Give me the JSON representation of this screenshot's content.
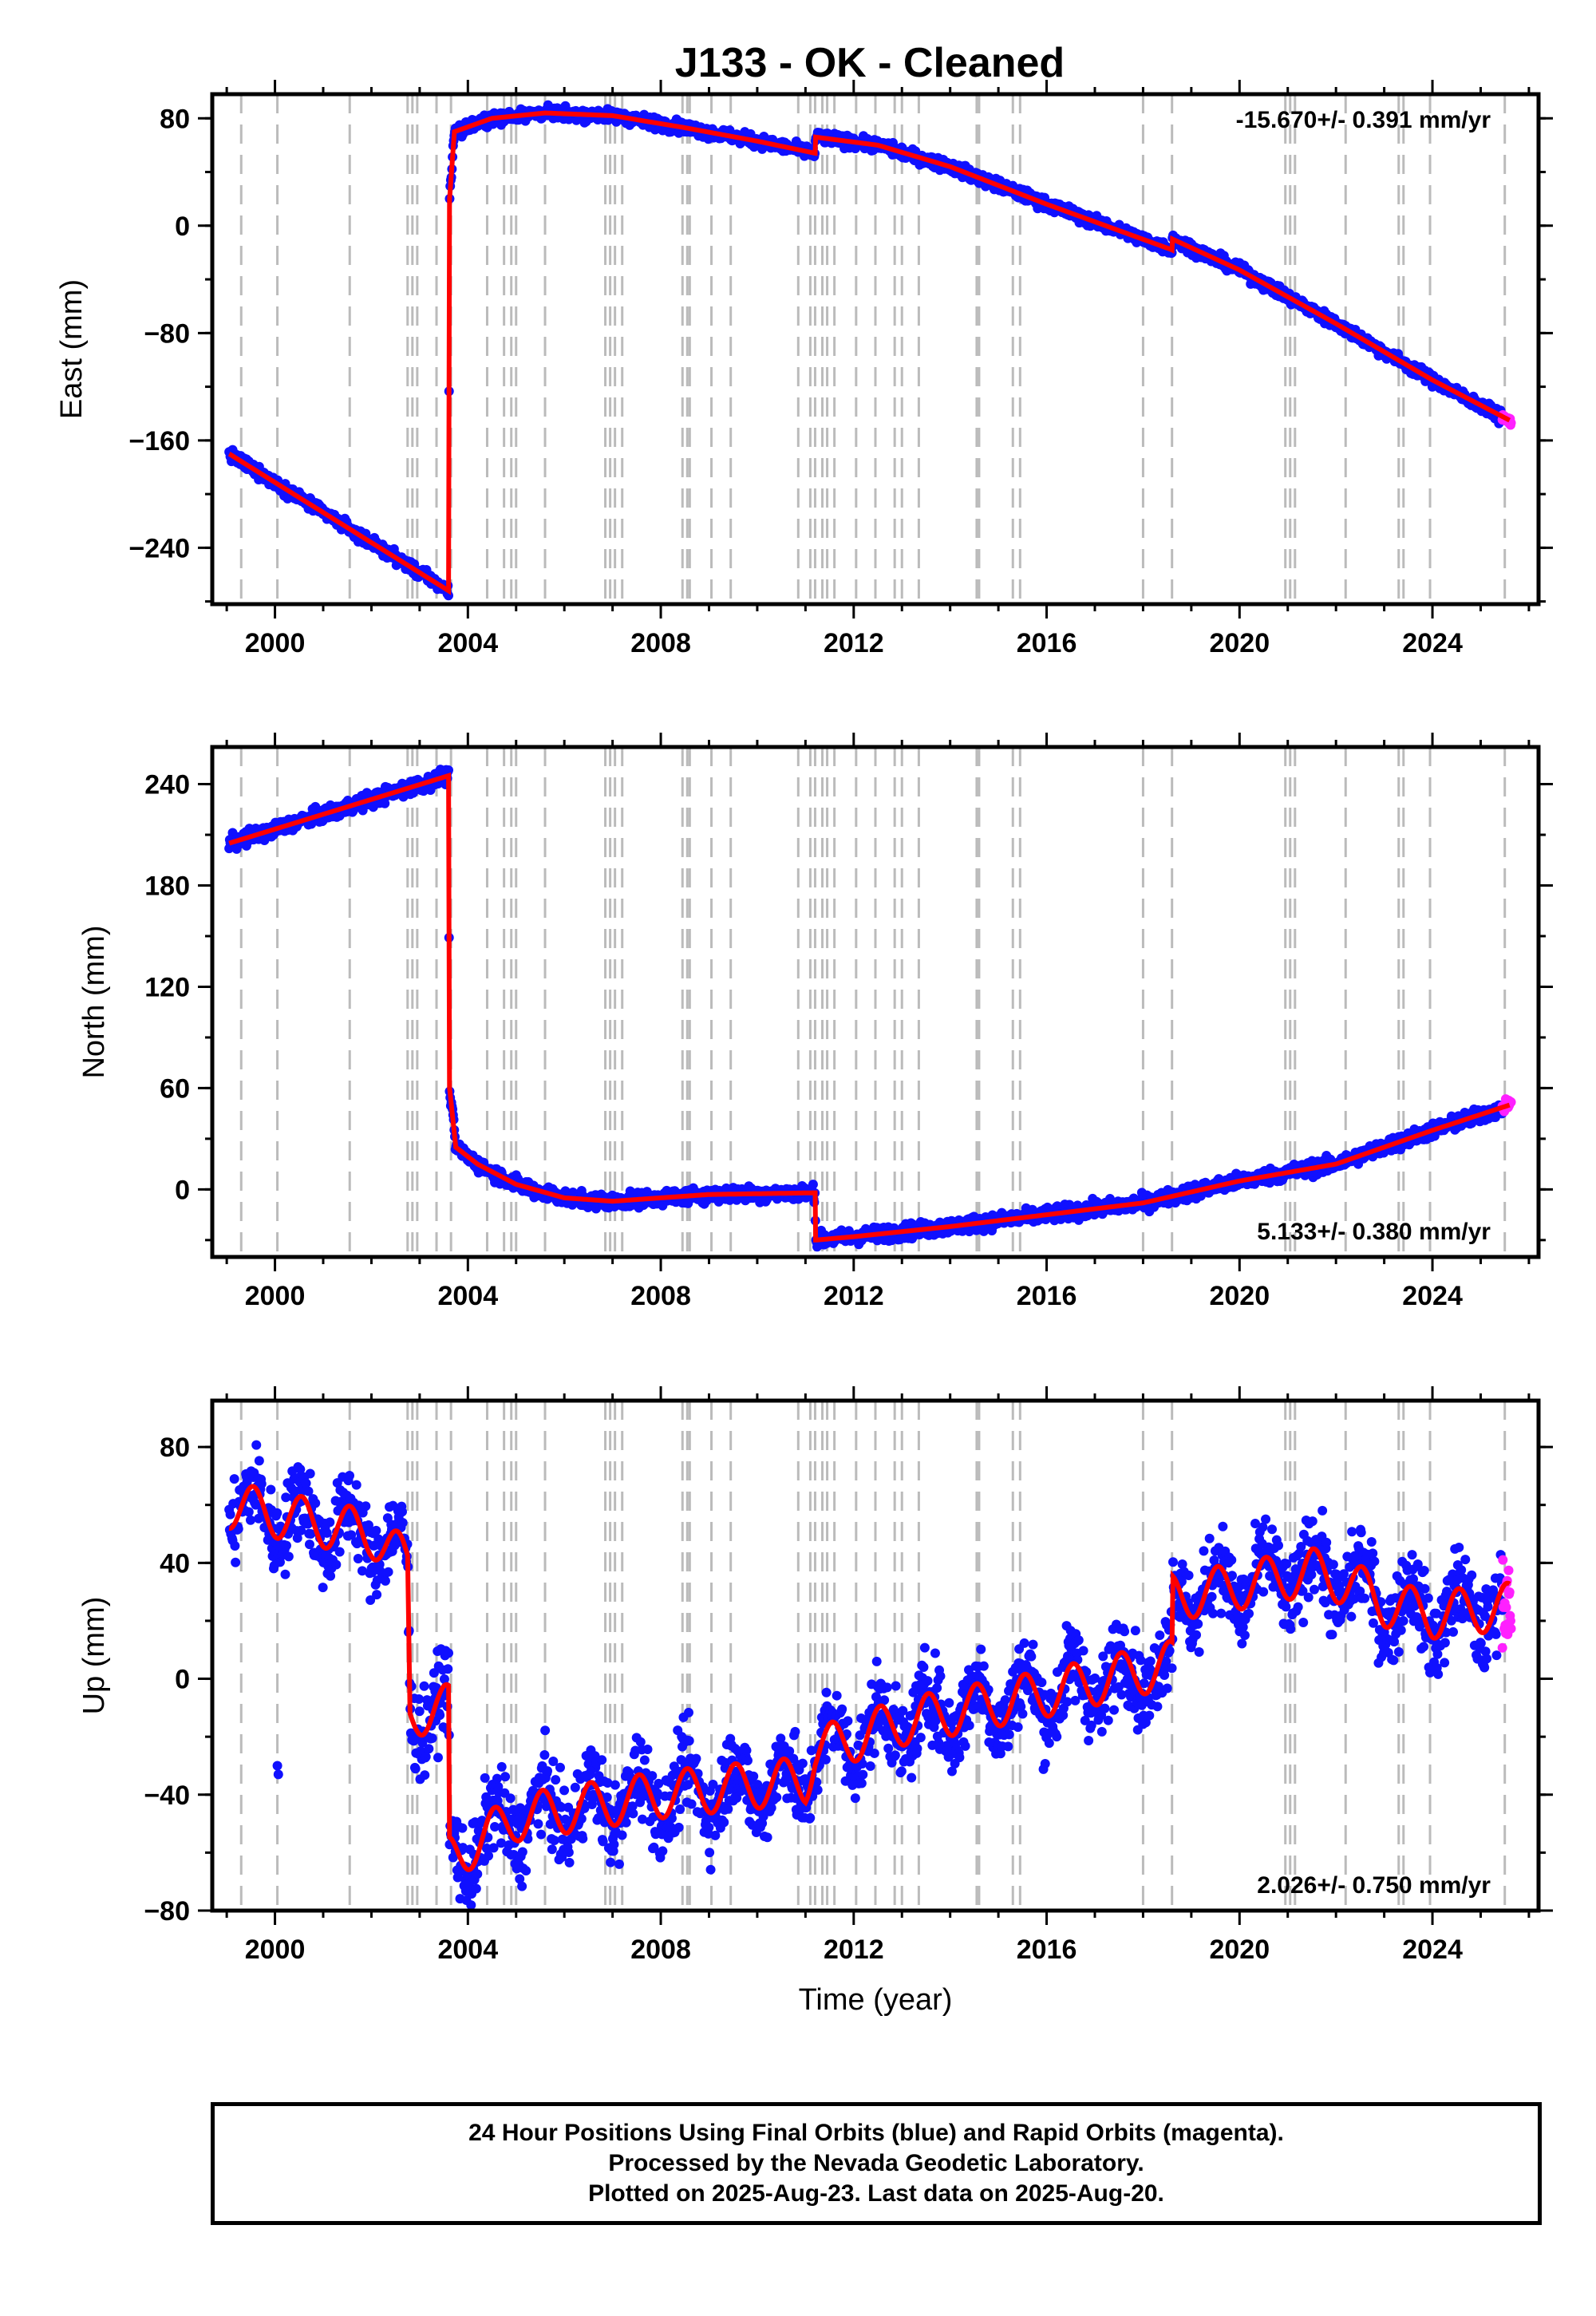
{
  "title": "J133  - OK - Cleaned",
  "colors": {
    "final": "#1010ff",
    "rapid": "#ff20ff",
    "model": "#ff0000",
    "equipment_lines": "#bbbbbb"
  },
  "chart_data": [
    {
      "type": "scatter",
      "component": "east",
      "ylabel": "East (mm)",
      "xlabel": "",
      "rate_label": "-15.670+/- 0.391 mm/yr",
      "xlim": [
        1998.7,
        2026.2
      ],
      "ylim": [
        -282,
        98
      ],
      "x_ticks": [
        2000,
        2004,
        2008,
        2012,
        2016,
        2020,
        2024
      ],
      "y_ticks": [
        -240,
        -160,
        -80,
        0,
        80
      ],
      "y_tick_labels": [
        "−240",
        "−160",
        "−80",
        "0",
        "80"
      ],
      "series": [
        {
          "kind": "model",
          "x": [
            1999.05,
            2003.6,
            2003.62,
            2003.72,
            2004.5,
            2005.6,
            2007.0,
            2008.5,
            2010.0,
            2011.2,
            2011.21,
            2012.5,
            2014.0,
            2016.0,
            2018.6,
            2018.61,
            2020.0,
            2022.0,
            2024.0,
            2025.6
          ],
          "y": [
            -170,
            -272,
            20,
            70,
            80,
            84,
            82,
            73,
            63,
            54,
            66,
            60,
            44,
            16,
            -18,
            -10,
            -33,
            -73,
            -115,
            -145
          ]
        },
        {
          "kind": "final",
          "x": [
            1999.05,
            2003.6,
            2003.62,
            2003.72,
            2004.5,
            2005.6,
            2007.0,
            2008.5,
            2010.0,
            2011.2,
            2011.21,
            2012.5,
            2014.0,
            2016.0,
            2018.6,
            2018.61,
            2020.0,
            2022.0,
            2024.0,
            2025.45
          ],
          "y": [
            -170,
            -272,
            20,
            70,
            80,
            84,
            82,
            73,
            63,
            54,
            66,
            60,
            44,
            16,
            -18,
            -10,
            -33,
            -73,
            -115,
            -143
          ]
        },
        {
          "kind": "rapid",
          "x": [
            2025.45,
            2025.63
          ],
          "y": [
            -143,
            -146
          ]
        }
      ]
    },
    {
      "type": "scatter",
      "component": "north",
      "ylabel": "North (mm)",
      "xlabel": "",
      "rate_label": "5.133+/- 0.380 mm/yr",
      "xlim": [
        1998.7,
        2026.2
      ],
      "ylim": [
        -40,
        262
      ],
      "x_ticks": [
        2000,
        2004,
        2008,
        2012,
        2016,
        2020,
        2024
      ],
      "y_ticks": [
        0,
        60,
        120,
        180,
        240
      ],
      "y_tick_labels": [
        "0",
        "60",
        "120",
        "180",
        "240"
      ],
      "series": [
        {
          "kind": "model",
          "x": [
            1999.05,
            2003.6,
            2003.62,
            2003.75,
            2004.2,
            2005.0,
            2006.0,
            2007.0,
            2009.0,
            2011.2,
            2011.21,
            2012.0,
            2014.0,
            2016.0,
            2018.0,
            2020.0,
            2022.0,
            2024.0,
            2025.6
          ],
          "y": [
            205,
            245,
            60,
            25,
            15,
            3,
            -5,
            -7,
            -3,
            -2,
            -30,
            -28,
            -22,
            -15,
            -8,
            5,
            15,
            35,
            50
          ]
        },
        {
          "kind": "final",
          "x": [
            1999.05,
            2003.6,
            2003.62,
            2003.75,
            2004.2,
            2005.0,
            2006.0,
            2007.0,
            2009.0,
            2011.2,
            2011.21,
            2012.0,
            2014.0,
            2016.0,
            2018.0,
            2020.0,
            2022.0,
            2024.0,
            2025.45
          ],
          "y": [
            205,
            245,
            60,
            25,
            15,
            3,
            -5,
            -7,
            -3,
            -2,
            -30,
            -28,
            -22,
            -15,
            -8,
            5,
            15,
            35,
            48
          ]
        },
        {
          "kind": "rapid",
          "x": [
            2025.45,
            2025.63
          ],
          "y": [
            48,
            52
          ]
        }
      ]
    },
    {
      "type": "scatter",
      "component": "up",
      "ylabel": "Up (mm)",
      "xlabel": "Time (year)",
      "rate_label": "2.026+/- 0.750 mm/yr",
      "xlim": [
        1998.7,
        2026.2
      ],
      "ylim": [
        -80,
        96
      ],
      "x_ticks": [
        2000,
        2004,
        2008,
        2012,
        2016,
        2020,
        2024
      ],
      "y_ticks": [
        -80,
        -40,
        0,
        40,
        80
      ],
      "y_tick_labels": [
        "−80",
        "−40",
        "0",
        "40",
        "80"
      ],
      "series": [
        {
          "kind": "model",
          "x": [
            1999.05,
            2000.5,
            2002.0,
            2002.75,
            2002.8,
            2003.6,
            2003.62,
            2005.0,
            2008.0,
            2011.0,
            2011.2,
            2013.0,
            2016.0,
            2018.6,
            2018.62,
            2020.0,
            2021.5,
            2022.3,
            2023.0,
            2024.0,
            2025.6
          ],
          "y": [
            60,
            55,
            50,
            40,
            -12,
            -10,
            -62,
            -48,
            -40,
            -35,
            -25,
            -15,
            -5,
            5,
            28,
            32,
            37,
            33,
            26,
            22,
            25
          ]
        },
        {
          "kind": "final",
          "x": [
            1999.05,
            2000.5,
            2002.0,
            2002.75,
            2002.8,
            2003.6,
            2003.62,
            2005.0,
            2008.0,
            2011.0,
            2011.2,
            2013.0,
            2016.0,
            2018.6,
            2018.62,
            2020.0,
            2021.5,
            2022.3,
            2023.0,
            2024.0,
            2025.45
          ],
          "y": [
            60,
            55,
            50,
            40,
            -12,
            -10,
            -62,
            -48,
            -40,
            -35,
            -25,
            -15,
            -5,
            5,
            28,
            32,
            37,
            33,
            26,
            22,
            25
          ]
        },
        {
          "kind": "rapid",
          "x": [
            2025.45,
            2025.63
          ],
          "y": [
            25,
            32
          ]
        }
      ]
    }
  ],
  "equipment_change_years": [
    1999.3,
    2000.05,
    2001.55,
    2002.75,
    2002.85,
    2002.95,
    2003.35,
    2003.65,
    2004.4,
    2004.75,
    2004.9,
    2005.0,
    2005.6,
    2006.85,
    2006.95,
    2007.05,
    2007.2,
    2008.45,
    2008.55,
    2008.6,
    2009.05,
    2009.45,
    2010.85,
    2011.1,
    2011.2,
    2011.35,
    2011.45,
    2011.6,
    2012.05,
    2012.45,
    2012.85,
    2013.0,
    2013.35,
    2014.55,
    2014.6,
    2015.3,
    2015.45,
    2018.0,
    2018.6,
    2020.95,
    2021.05,
    2021.15,
    2022.2,
    2023.3,
    2023.4,
    2023.95,
    2025.5
  ],
  "footer": {
    "line1": "24 Hour Positions Using Final Orbits (blue) and Rapid Orbits (magenta).",
    "line2": "Processed by the Nevada Geodetic Laboratory.",
    "line3": "Plotted on 2025-Aug-23. Last data on 2025-Aug-20."
  }
}
